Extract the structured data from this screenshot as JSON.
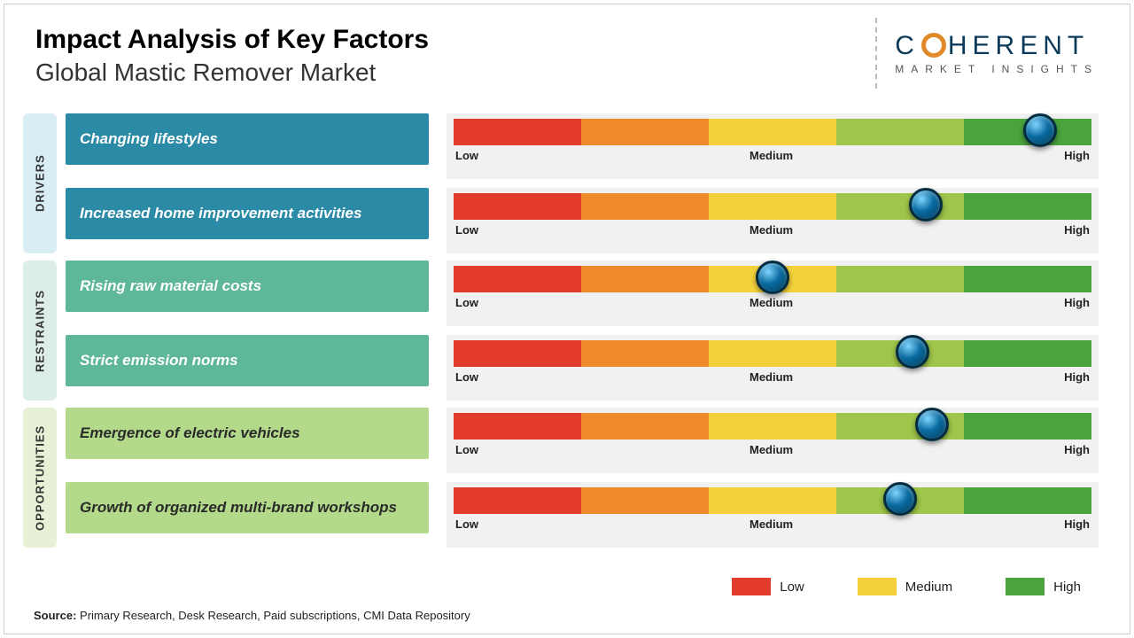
{
  "header": {
    "title": "Impact Analysis of Key Factors",
    "subtitle": "Global Mastic Remover Market"
  },
  "logo": {
    "line1_pre": "C",
    "line1_post": "HERENT",
    "line2": "MARKET INSIGHTS",
    "text_color": "#0a3a5a",
    "ring_color": "#e08a2a"
  },
  "scale": {
    "low": "Low",
    "medium": "Medium",
    "high": "High",
    "segment_colors": [
      "#e23b2e",
      "#ef8a2c",
      "#f4d13b",
      "#9fc54a",
      "#4aa33d"
    ]
  },
  "sections": [
    {
      "label": "DRIVERS",
      "label_bg": "#d9edf5",
      "box_bg": "#2b8aa6",
      "box_text_color": "#ffffff",
      "rows": [
        {
          "factor": "Changing lifestyles",
          "marker_pct": 92
        },
        {
          "factor": "Increased home improvement activities",
          "marker_pct": 74
        }
      ]
    },
    {
      "label": "RESTRAINTS",
      "label_bg": "#dceee6",
      "box_bg": "#5fb79b",
      "box_text_color": "#ffffff",
      "rows": [
        {
          "factor": "Rising raw material costs",
          "marker_pct": 50
        },
        {
          "factor": "Strict emission norms",
          "marker_pct": 72
        }
      ]
    },
    {
      "label": "OPPORTUNITIES",
      "label_bg": "#e7f1d6",
      "box_bg": "#b3d98a",
      "box_text_color": "#2a2a2a",
      "rows": [
        {
          "factor": "Emergence of electric vehicles",
          "marker_pct": 75
        },
        {
          "factor": "Growth of organized multi-brand workshops",
          "marker_pct": 70
        }
      ]
    }
  ],
  "legend": {
    "items": [
      {
        "label": "Low",
        "color": "#e23b2e"
      },
      {
        "label": "Medium",
        "color": "#f4d13b"
      },
      {
        "label": "High",
        "color": "#4aa33d"
      }
    ]
  },
  "source": {
    "prefix": "Source:",
    "text": " Primary Research, Desk Research, Paid subscriptions, CMI Data Repository"
  }
}
